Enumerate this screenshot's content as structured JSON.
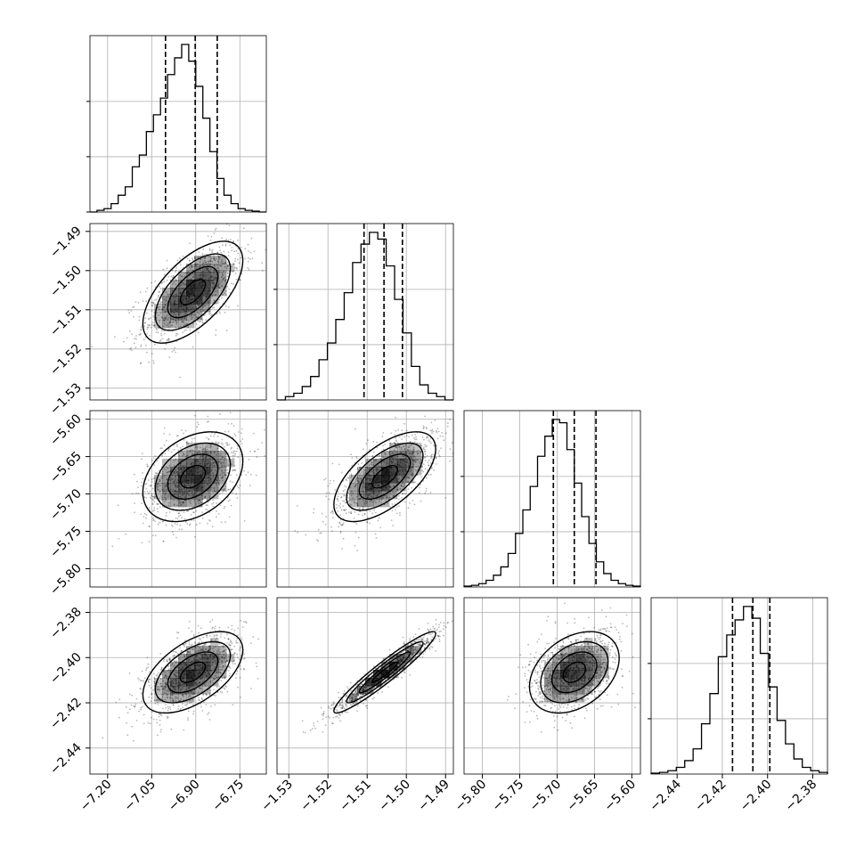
{
  "figure": {
    "type": "corner plot"
  },
  "chart_data": {
    "type": "corner",
    "n_params": 4,
    "params": [
      {
        "range": [
          -7.26,
          -6.66
        ],
        "ticks": [
          -7.2,
          -7.05,
          -6.9,
          -6.75
        ],
        "tick_labels": [
          "−7.20",
          "−7.05",
          "−6.90",
          "−6.75"
        ],
        "quantiles": [
          -7.003,
          -6.902,
          -6.827
        ],
        "histogram": [
          0,
          0.01,
          0.02,
          0.05,
          0.1,
          0.15,
          0.27,
          0.34,
          0.48,
          0.58,
          0.68,
          0.82,
          0.92,
          1.0,
          0.9,
          0.75,
          0.56,
          0.36,
          0.2,
          0.1,
          0.05,
          0.02,
          0.01,
          0.005,
          0
        ]
      },
      {
        "range": [
          -1.533,
          -1.488
        ],
        "ticks": [
          -1.53,
          -1.52,
          -1.51,
          -1.5,
          -1.49
        ],
        "tick_labels": [
          "−1.53",
          "−1.52",
          "−1.51",
          "−1.50",
          "−1.49"
        ],
        "quantiles": [
          -1.5108,
          -1.5057,
          -1.501
        ],
        "histogram": [
          0,
          0.02,
          0.04,
          0.08,
          0.14,
          0.24,
          0.34,
          0.48,
          0.64,
          0.82,
          0.93,
          1.0,
          0.96,
          0.8,
          0.6,
          0.4,
          0.2,
          0.09,
          0.04,
          0.02,
          0
        ]
      },
      {
        "range": [
          -5.8245,
          -5.5885
        ],
        "ticks": [
          -5.8,
          -5.75,
          -5.7,
          -5.65,
          -5.6
        ],
        "tick_labels": [
          "−5.80",
          "−5.75",
          "−5.70",
          "−5.65",
          "−5.60"
        ],
        "quantiles": [
          -5.705,
          -5.677,
          -5.648
        ],
        "histogram": [
          0.005,
          0.01,
          0.02,
          0.04,
          0.07,
          0.12,
          0.2,
          0.32,
          0.46,
          0.6,
          0.78,
          0.9,
          1.0,
          0.98,
          0.82,
          0.62,
          0.42,
          0.26,
          0.15,
          0.08,
          0.04,
          0.02,
          0.01,
          0.005
        ]
      },
      {
        "range": [
          -2.4515,
          -2.3735
        ],
        "ticks": [
          -2.44,
          -2.42,
          -2.4,
          -2.38
        ],
        "tick_labels": [
          "−2.44",
          "−2.42",
          "−2.40",
          "−2.38"
        ],
        "quantiles": [
          -2.4155,
          -2.4065,
          -2.399
        ],
        "histogram": [
          0.005,
          0.01,
          0.02,
          0.04,
          0.08,
          0.15,
          0.3,
          0.48,
          0.7,
          0.83,
          0.92,
          1.0,
          0.93,
          0.72,
          0.52,
          0.32,
          0.18,
          0.09,
          0.04,
          0.02,
          0.01
        ]
      }
    ],
    "pairs": [
      {
        "row": 1,
        "col": 0,
        "mean": [
          -6.91,
          -1.5055
        ],
        "sd": [
          0.085,
          0.0065
        ],
        "corr": 0.62
      },
      {
        "row": 2,
        "col": 0,
        "mean": [
          -6.91,
          -5.677
        ],
        "sd": [
          0.085,
          0.03
        ],
        "corr": 0.35
      },
      {
        "row": 2,
        "col": 1,
        "mean": [
          -1.5055,
          -5.677
        ],
        "sd": [
          0.0065,
          0.03
        ],
        "corr": 0.62
      },
      {
        "row": 3,
        "col": 0,
        "mean": [
          -6.91,
          -2.4065
        ],
        "sd": [
          0.085,
          0.009
        ],
        "corr": 0.55
      },
      {
        "row": 3,
        "col": 1,
        "mean": [
          -1.5055,
          -2.4065
        ],
        "sd": [
          0.0065,
          0.009
        ],
        "corr": 0.95
      },
      {
        "row": 3,
        "col": 2,
        "mean": [
          -5.677,
          -2.4065
        ],
        "sd": [
          0.03,
          0.009
        ],
        "corr": 0.35
      }
    ],
    "grid": true,
    "colors": {
      "line": "#000000",
      "grid": "#b0b0b0",
      "points": "#000000",
      "density": "#000000"
    }
  }
}
